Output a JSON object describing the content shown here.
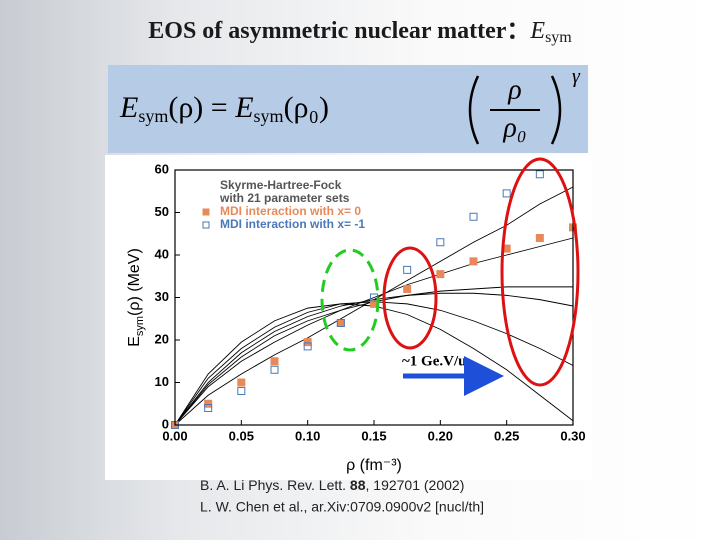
{
  "title": {
    "text": "EOS of asymmetric nuclear matter：",
    "symbol": "E",
    "symbol_sub": "sym"
  },
  "formula": {
    "left": "E",
    "left_sub": "sym",
    "left_arg": "(ρ) = ",
    "right": "E",
    "right_sub": "sym",
    "right_arg": "(ρ₀)",
    "num": "ρ",
    "den": "ρ₀",
    "exp": "γ"
  },
  "chart_data": {
    "type": "line",
    "xlabel": "ρ (fm⁻³)",
    "ylabel": {
      "main": "E",
      "sub": "sym",
      "rest": "(ρ) (MeV)"
    },
    "x": [
      0,
      0.025,
      0.05,
      0.075,
      0.1,
      0.125,
      0.15,
      0.175,
      0.2,
      0.225,
      0.25,
      0.275,
      0.3
    ],
    "xlim": [
      0,
      0.3
    ],
    "xticks": [
      {
        "value": 0,
        "label": "0.00"
      },
      {
        "value": 0.05,
        "label": "0.05"
      },
      {
        "value": 0.1,
        "label": "0.10"
      },
      {
        "value": 0.15,
        "label": "0.15"
      },
      {
        "value": 0.2,
        "label": "0.20"
      },
      {
        "value": 0.25,
        "label": "0.25"
      },
      {
        "value": 0.3,
        "label": "0.30"
      }
    ],
    "ylim": [
      0,
      60
    ],
    "yticks": [
      0,
      10,
      20,
      30,
      40,
      50,
      60
    ],
    "series": [
      {
        "name": [
          "Skyrme-Hartree-Fock",
          "with 21 parameter sets"
        ],
        "color": "#000000",
        "style": "lines",
        "curves": [
          [
            0,
            7,
            12,
            16.5,
            20.5,
            25,
            29.5,
            34,
            38.5,
            43,
            47,
            52,
            56
          ],
          [
            0,
            9,
            15,
            19.5,
            23.5,
            27,
            30,
            33,
            35.5,
            38,
            40,
            42,
            44
          ],
          [
            0,
            10,
            17,
            22,
            25.5,
            28,
            29.5,
            30.5,
            31,
            31,
            30.5,
            29.5,
            28
          ],
          [
            0,
            11,
            18,
            23,
            26.5,
            28.5,
            29,
            28.5,
            27,
            24.5,
            21.5,
            18,
            14
          ],
          [
            0,
            9.5,
            16,
            21,
            24.5,
            27,
            29,
            30.5,
            31.5,
            32,
            32.5,
            32.5,
            32.5
          ],
          [
            0,
            12,
            19.5,
            24.5,
            27.5,
            28.5,
            28,
            26,
            22.5,
            18,
            13,
            7,
            1
          ]
        ]
      },
      {
        "name": "MDI interaction with x= 0",
        "color": "#e8895a",
        "style": "filled-squares",
        "values": [
          0,
          5,
          10,
          15,
          19.5,
          24,
          28.5,
          32,
          35.5,
          38.5,
          41.5,
          44,
          46.5
        ]
      },
      {
        "name": "MDI interaction with x= -1",
        "color": "#4a78b8",
        "style": "open-squares",
        "values": [
          0,
          4,
          8,
          13,
          18.5,
          24,
          30,
          36.5,
          43,
          49,
          54.5,
          59,
          null
        ]
      }
    ],
    "annotation": "~1 Ge.V/u"
  },
  "citations": [
    {
      "pre": "B. A. Li Phys. Rev. Lett. ",
      "vol": "88",
      "post": ", 192701 (2002)"
    },
    {
      "text": "L. W. Chen et al., ar.Xiv:0709.0900v2 [nucl/th]"
    }
  ]
}
